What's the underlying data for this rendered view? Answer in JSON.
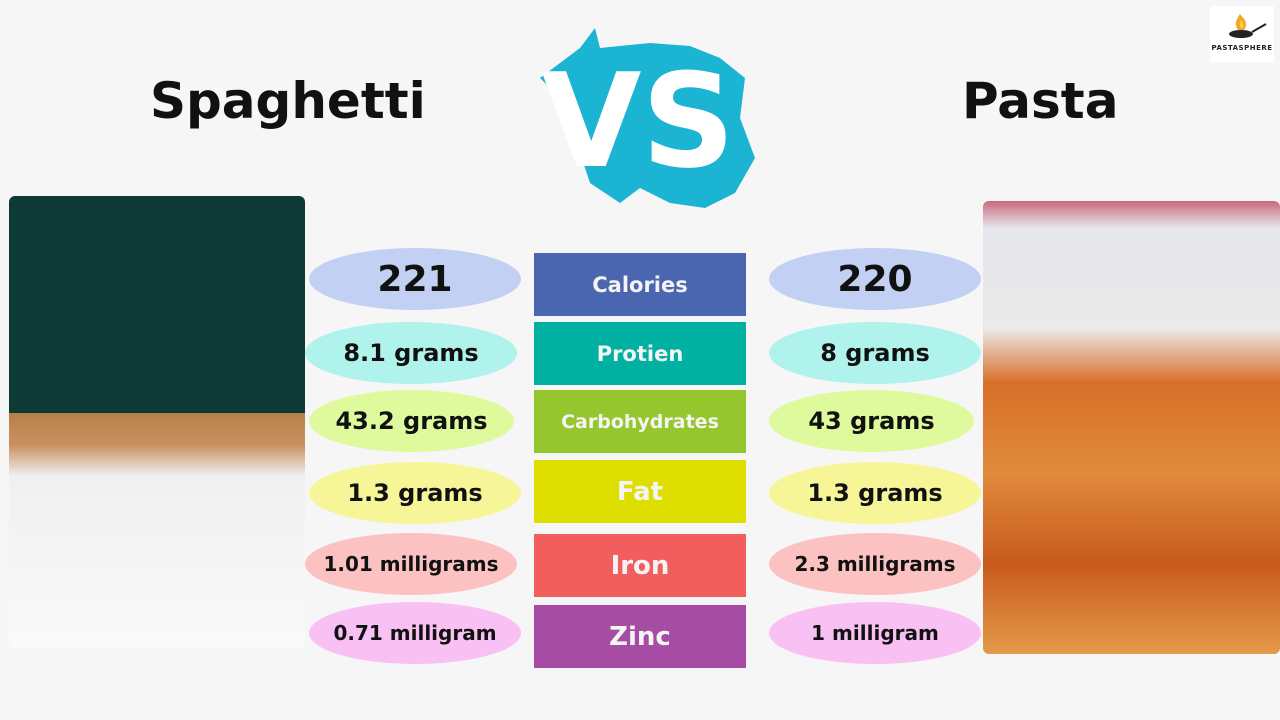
{
  "header": {
    "left_title": "Spaghetti",
    "right_title": "Pasta",
    "vs_text": "VS",
    "logo_text": "PASTASPHERE"
  },
  "nutrients": [
    {
      "label": "Calories",
      "color": "#4a66b0",
      "spaghetti": "221",
      "pasta": "220",
      "oval_color": "#c2d0f4"
    },
    {
      "label": "Protien",
      "color": "#00b0a0",
      "spaghetti": "8.1 grams",
      "pasta": "8 grams",
      "oval_color": "#b0f2ec"
    },
    {
      "label": "Carbohydrates",
      "color": "#96c62e",
      "spaghetti": "43.2 grams",
      "pasta": "43 grams",
      "oval_color": "#defa9c"
    },
    {
      "label": "Fat",
      "color": "#dede00",
      "spaghetti": "1.3 grams",
      "pasta": "1.3 grams",
      "oval_color": "#f6f698"
    },
    {
      "label": "Iron",
      "color": "#f25e5e",
      "spaghetti": "1.01 milligrams",
      "pasta": "2.3 milligrams",
      "oval_color": "#fcc2c2"
    },
    {
      "label": "Zinc",
      "color": "#a64ca2",
      "spaghetti": "0.71 milligram",
      "pasta": "1 milligram",
      "oval_color": "#f9c0f4"
    }
  ],
  "colors": {
    "background": "#f6f6f6",
    "vs_accent": "#1bb4d2"
  }
}
